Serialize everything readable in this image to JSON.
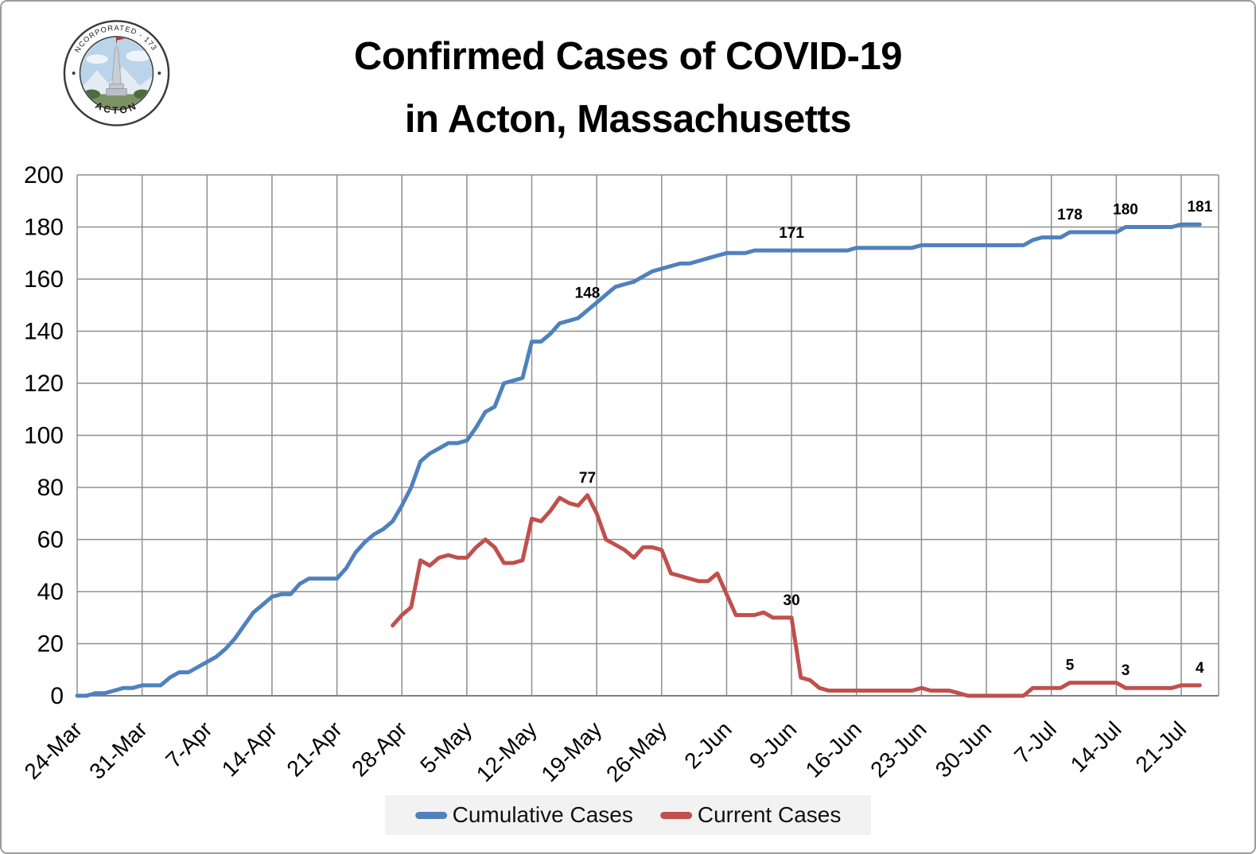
{
  "page": {
    "title_line1": "Confirmed Cases of COVID-19",
    "title_line2": "in Acton, Massachusetts"
  },
  "logo": {
    "ring_top": "INCORPORATED - 1735",
    "ring_bottom": "ACTON"
  },
  "legend": {
    "items": [
      {
        "label": "Cumulative Cases",
        "color": "#4F81BD"
      },
      {
        "label": "Current Cases",
        "color": "#C0504D"
      }
    ]
  },
  "chart_data": {
    "type": "line",
    "title": "Confirmed Cases of COVID-19 in Acton, Massachusetts",
    "xlabel": "",
    "ylabel": "",
    "ylim": [
      0,
      200
    ],
    "y_ticks": [
      0,
      20,
      40,
      60,
      80,
      100,
      120,
      140,
      160,
      180,
      200
    ],
    "grid": true,
    "legend_position": "bottom",
    "x_frequency": "daily",
    "start_date": "24-Mar",
    "end_date": "23-Jul",
    "x_tick_labels": [
      "24-Mar",
      "31-Mar",
      "7-Apr",
      "14-Apr",
      "21-Apr",
      "28-Apr",
      "5-May",
      "12-May",
      "19-May",
      "26-May",
      "2-Jun",
      "9-Jun",
      "16-Jun",
      "23-Jun",
      "30-Jun",
      "7-Jul",
      "14-Jul",
      "21-Jul"
    ],
    "colors": {
      "gridline": "#8F8F8F",
      "axis_text": "#000000",
      "legend_bg": "#F2F2F2"
    },
    "series": [
      {
        "name": "Cumulative Cases",
        "color": "#4F81BD",
        "values": [
          0,
          0,
          1,
          1,
          2,
          3,
          3,
          4,
          4,
          4,
          7,
          9,
          9,
          11,
          13,
          15,
          18,
          22,
          27,
          32,
          35,
          38,
          39,
          39,
          43,
          45,
          45,
          45,
          45,
          49,
          55,
          59,
          62,
          64,
          67,
          73,
          80,
          90,
          93,
          95,
          97,
          97,
          98,
          103,
          109,
          111,
          120,
          121,
          122,
          136,
          136,
          139,
          143,
          144,
          145,
          148,
          151,
          154,
          157,
          158,
          159,
          161,
          163,
          164,
          165,
          166,
          166,
          167,
          168,
          169,
          170,
          170,
          170,
          171,
          171,
          171,
          171,
          171,
          171,
          171,
          171,
          171,
          171,
          171,
          172,
          172,
          172,
          172,
          172,
          172,
          172,
          173,
          173,
          173,
          173,
          173,
          173,
          173,
          173,
          173,
          173,
          173,
          173,
          175,
          176,
          176,
          176,
          178,
          178,
          178,
          178,
          178,
          178,
          180,
          180,
          180,
          180,
          180,
          180,
          181,
          181,
          181
        ]
      },
      {
        "name": "Current Cases",
        "color": "#C0504D",
        "values": [
          null,
          null,
          null,
          null,
          null,
          null,
          null,
          null,
          null,
          null,
          null,
          null,
          null,
          null,
          null,
          null,
          null,
          null,
          null,
          null,
          null,
          null,
          null,
          null,
          null,
          null,
          null,
          null,
          null,
          null,
          null,
          null,
          null,
          null,
          27,
          31,
          34,
          52,
          50,
          53,
          54,
          53,
          53,
          57,
          60,
          57,
          51,
          51,
          52,
          68,
          67,
          71,
          76,
          74,
          73,
          77,
          70,
          60,
          58,
          56,
          53,
          57,
          57,
          56,
          47,
          46,
          45,
          44,
          44,
          47,
          39,
          31,
          31,
          31,
          32,
          30,
          30,
          30,
          7,
          6,
          3,
          2,
          2,
          2,
          2,
          2,
          2,
          2,
          2,
          2,
          2,
          3,
          2,
          2,
          2,
          1,
          0,
          0,
          0,
          0,
          0,
          0,
          0,
          3,
          3,
          3,
          3,
          5,
          5,
          5,
          5,
          5,
          5,
          3,
          3,
          3,
          3,
          3,
          3,
          4,
          4,
          4
        ]
      }
    ],
    "data_labels": [
      {
        "series": "Cumulative Cases",
        "date": "18-May",
        "index": 55,
        "text": "148"
      },
      {
        "series": "Cumulative Cases",
        "date": "9-Jun",
        "index": 77,
        "text": "171"
      },
      {
        "series": "Cumulative Cases",
        "date": "9-Jul",
        "index": 107,
        "text": "178"
      },
      {
        "series": "Cumulative Cases",
        "date": "15-Jul",
        "index": 113,
        "text": "180"
      },
      {
        "series": "Cumulative Cases",
        "date": "21-Jul",
        "index": 121,
        "text": "181"
      },
      {
        "series": "Current Cases",
        "date": "18-May",
        "index": 55,
        "text": "77"
      },
      {
        "series": "Current Cases",
        "date": "9-Jun",
        "index": 77,
        "text": "30"
      },
      {
        "series": "Current Cases",
        "date": "9-Jul",
        "index": 107,
        "text": "5"
      },
      {
        "series": "Current Cases",
        "date": "15-Jul",
        "index": 113,
        "text": "3"
      },
      {
        "series": "Current Cases",
        "date": "21-Jul",
        "index": 121,
        "text": "4"
      }
    ]
  }
}
